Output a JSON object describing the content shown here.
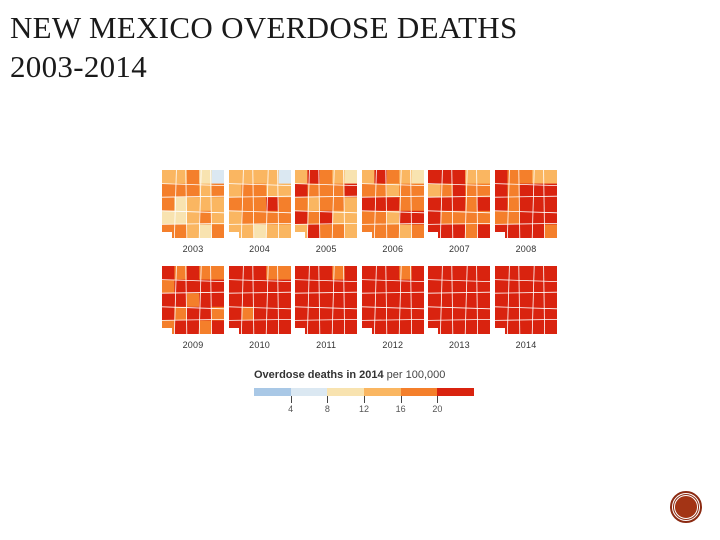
{
  "slide": {
    "title_line1": "NEW MEXICO OVERDOSE DEATHS",
    "title_line2": "2003-2014"
  },
  "map_grid": {
    "years": [
      "2003",
      "2004",
      "2005",
      "2006",
      "2007",
      "2008",
      "2009",
      "2010",
      "2011",
      "2012",
      "2013",
      "2014"
    ]
  },
  "legend": {
    "title_bold": "Overdose deaths in 2014",
    "title_rest": " per 100,000",
    "ticks": [
      "4",
      "8",
      "12",
      "16",
      "20"
    ],
    "colors": [
      "#a9c8e6",
      "#dbe8f2",
      "#f8e3b0",
      "#fab661",
      "#f47f2b",
      "#d9230f"
    ]
  },
  "nav": {
    "icon": "next-slide-icon"
  }
}
